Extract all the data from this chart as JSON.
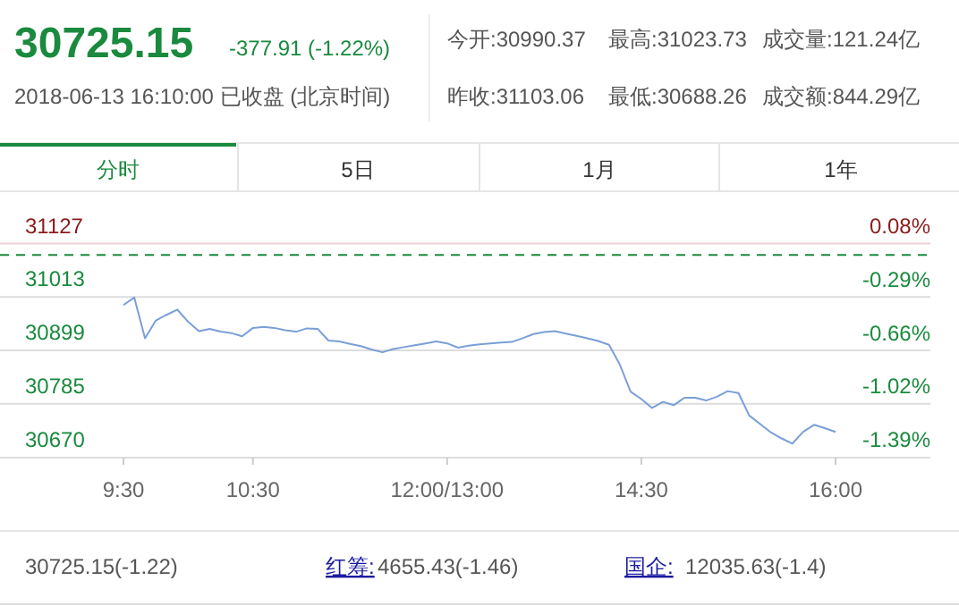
{
  "chart_data": {
    "type": "line",
    "title": "30725.15",
    "subtitle": "-377.91 (-1.22%)",
    "annotations": [
      "2018-06-13 16:10:00 已收盘 (北京时间)",
      "今开:30990.37",
      "最高:31023.73",
      "成交量:121.24亿",
      "昨收:31103.06",
      "最低:30688.26",
      "成交额:844.29亿",
      "分时",
      "5日",
      "1月",
      "1年",
      "30725.15(-1.22)",
      "红筹:",
      "4655.43(-1.46)",
      "国企:",
      "12035.63(-1.4)"
    ],
    "categories": [
      "9:30",
      null,
      null,
      null,
      null,
      null,
      null,
      null,
      null,
      null,
      null,
      null,
      "10:30",
      null,
      null,
      null,
      null,
      null,
      null,
      null,
      null,
      null,
      null,
      null,
      null,
      null,
      null,
      null,
      null,
      null,
      "12:00/13:00",
      null,
      null,
      null,
      null,
      null,
      null,
      null,
      null,
      null,
      null,
      null,
      null,
      null,
      null,
      null,
      null,
      null,
      "14:30",
      null,
      null,
      null,
      null,
      null,
      null,
      null,
      null,
      null,
      null,
      null,
      null,
      null,
      null,
      null,
      null,
      null,
      "16:00"
    ],
    "series": [
      {
        "color": "#7a9fd6",
        "values": [
          30996,
          31012,
          30925,
          30963,
          30975,
          30986,
          30960,
          30940,
          30945,
          30939,
          30936,
          30929,
          30947,
          30949,
          30947,
          30942,
          30939,
          30946,
          30945,
          30920,
          30918,
          30913,
          30908,
          30901,
          30895,
          30902,
          30906,
          30910,
          30914,
          30918,
          30914,
          30905,
          30909,
          30912,
          30914,
          30916,
          30917,
          30925,
          30934,
          30938,
          30940,
          30935,
          30930,
          30925,
          30919,
          30911,
          30869,
          30811,
          30795,
          30776,
          30789,
          30782,
          30798,
          30798,
          30792,
          30800,
          30812,
          30808,
          30760,
          30742,
          30724,
          30711,
          30700,
          30725,
          30740,
          30733,
          30725
        ]
      }
    ],
    "ylim": [
      30670,
      31127
    ],
    "yticks": [
      30670,
      30785,
      30899,
      31013,
      31127
    ],
    "y2lim": [
      -1.39,
      0.08
    ],
    "y2ticks": [
      {
        "value": -1.39,
        "label": "-1.39%"
      },
      {
        "value": -1.02,
        "label": "-1.02%"
      },
      {
        "value": -0.66,
        "label": "-0.66%"
      },
      {
        "value": -0.29,
        "label": "-0.29%"
      },
      {
        "value": 0.08,
        "label": "0.08%"
      }
    ],
    "ref_lines": [
      {
        "axis": "y",
        "value": 31103.06,
        "color": "#1a8a3e",
        "line_style": "dashed"
      }
    ],
    "grid": "y",
    "marker": "none",
    "line_style": "solid"
  }
}
